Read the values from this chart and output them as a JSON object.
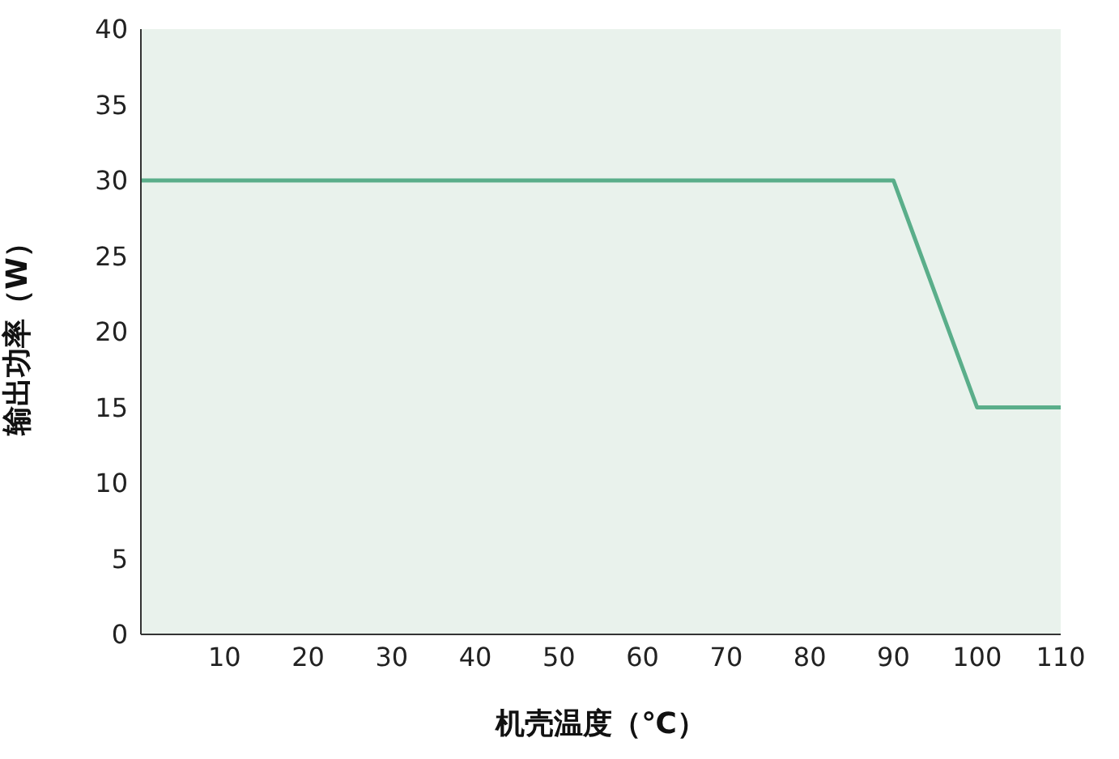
{
  "chart_data": {
    "type": "line",
    "xlabel": "机壳温度（℃）",
    "ylabel": "输出功率（W）",
    "x": [
      0,
      90,
      100,
      110
    ],
    "series": [
      {
        "color": "#5aae8a",
        "values": [
          30,
          30,
          15,
          15
        ]
      }
    ],
    "xlim": [
      0,
      110
    ],
    "xticks": [
      10,
      20,
      30,
      40,
      50,
      60,
      70,
      80,
      90,
      100,
      110
    ],
    "ylim": [
      0,
      40
    ],
    "yticks": [
      0,
      5,
      10,
      15,
      20,
      25,
      30,
      35,
      40
    ],
    "marker": "none",
    "line_style": "solid"
  }
}
